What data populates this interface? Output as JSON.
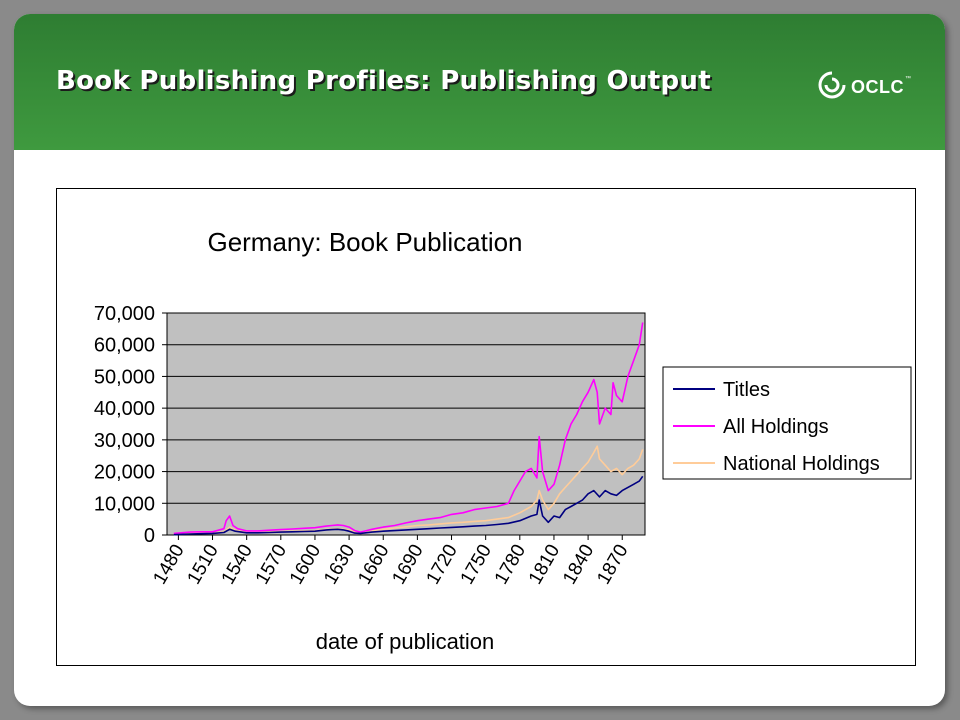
{
  "header": {
    "title": "Book Publishing Profiles: Publishing Output",
    "logo_text": "OCLC",
    "logo_tm": "™",
    "logo_icon": "oclc-swirl-icon",
    "colors": {
      "band": "#3a8f3a",
      "title": "#ffffff"
    }
  },
  "chart_data": {
    "type": "line",
    "title": "Germany: Book Publication",
    "xlabel": "date of publication",
    "ylabel": "",
    "xlim": [
      1470,
      1890
    ],
    "ylim": [
      0,
      70000
    ],
    "x_ticks": [
      1480,
      1510,
      1540,
      1570,
      1600,
      1630,
      1660,
      1690,
      1720,
      1750,
      1780,
      1810,
      1840,
      1870
    ],
    "y_ticks": [
      0,
      10000,
      20000,
      30000,
      40000,
      50000,
      60000,
      70000
    ],
    "y_tick_labels": [
      "0",
      "10,000",
      "20,000",
      "30,000",
      "40,000",
      "50,000",
      "60,000",
      "70,000"
    ],
    "grid": true,
    "plot_background": "#c0c0c0",
    "legend_position": "right",
    "series": [
      {
        "name": "Titles",
        "color": "#000080",
        "x": [
          1476,
          1490,
          1500,
          1510,
          1520,
          1525,
          1530,
          1540,
          1550,
          1560,
          1570,
          1580,
          1590,
          1600,
          1610,
          1615,
          1620,
          1625,
          1630,
          1635,
          1640,
          1650,
          1660,
          1670,
          1680,
          1690,
          1700,
          1710,
          1720,
          1730,
          1740,
          1750,
          1760,
          1770,
          1780,
          1790,
          1795,
          1797,
          1800,
          1805,
          1810,
          1815,
          1820,
          1825,
          1830,
          1835,
          1840,
          1845,
          1850,
          1855,
          1860,
          1865,
          1870,
          1875,
          1880,
          1885,
          1888
        ],
        "y": [
          100,
          300,
          400,
          500,
          800,
          1800,
          1200,
          700,
          700,
          800,
          900,
          1000,
          1100,
          1200,
          1600,
          1700,
          1800,
          1600,
          1200,
          600,
          500,
          900,
          1200,
          1400,
          1600,
          1800,
          2000,
          2200,
          2400,
          2600,
          2800,
          3000,
          3300,
          3700,
          4500,
          6000,
          6500,
          11000,
          6000,
          4000,
          6000,
          5500,
          8000,
          9000,
          10000,
          11000,
          13000,
          14000,
          12000,
          14000,
          13000,
          12500,
          14000,
          15000,
          16000,
          17000,
          18500
        ]
      },
      {
        "name": "All Holdings",
        "color": "#ff00ff",
        "x": [
          1476,
          1490,
          1500,
          1510,
          1520,
          1522,
          1525,
          1528,
          1532,
          1540,
          1550,
          1560,
          1570,
          1580,
          1590,
          1600,
          1610,
          1615,
          1620,
          1625,
          1630,
          1635,
          1640,
          1650,
          1660,
          1670,
          1680,
          1690,
          1700,
          1710,
          1720,
          1730,
          1740,
          1750,
          1760,
          1770,
          1775,
          1780,
          1785,
          1790,
          1795,
          1797,
          1800,
          1805,
          1810,
          1815,
          1820,
          1825,
          1830,
          1835,
          1840,
          1845,
          1848,
          1850,
          1855,
          1860,
          1862,
          1865,
          1870,
          1875,
          1880,
          1885,
          1888
        ],
        "y": [
          500,
          900,
          1000,
          1000,
          2000,
          4500,
          6000,
          3000,
          2000,
          1300,
          1300,
          1500,
          1700,
          1900,
          2100,
          2300,
          2800,
          3000,
          3200,
          3000,
          2500,
          1400,
          900,
          1800,
          2500,
          3000,
          3800,
          4500,
          5000,
          5500,
          6500,
          7000,
          8000,
          8500,
          9000,
          10000,
          14000,
          17000,
          20000,
          21000,
          18000,
          31000,
          20000,
          14000,
          16000,
          22000,
          30000,
          35000,
          38000,
          42000,
          45000,
          49000,
          45000,
          35000,
          40000,
          38000,
          48000,
          44000,
          42000,
          50000,
          55000,
          60000,
          67000
        ]
      },
      {
        "name": "National Holdings",
        "color": "#ffcc99",
        "x": [
          1476,
          1490,
          1500,
          1510,
          1520,
          1525,
          1530,
          1540,
          1550,
          1560,
          1570,
          1580,
          1590,
          1600,
          1610,
          1620,
          1630,
          1635,
          1640,
          1650,
          1660,
          1670,
          1680,
          1690,
          1700,
          1710,
          1720,
          1730,
          1740,
          1750,
          1760,
          1770,
          1780,
          1790,
          1795,
          1797,
          1800,
          1805,
          1810,
          1815,
          1820,
          1825,
          1830,
          1835,
          1840,
          1845,
          1848,
          1850,
          1855,
          1860,
          1865,
          1870,
          1875,
          1880,
          1885,
          1888
        ],
        "y": [
          300,
          500,
          600,
          600,
          1000,
          2500,
          1500,
          900,
          900,
          1000,
          1100,
          1200,
          1300,
          1400,
          1800,
          2000,
          1600,
          1000,
          700,
          1300,
          1800,
          2200,
          2600,
          3000,
          3200,
          3500,
          3800,
          4000,
          4300,
          4500,
          5000,
          5500,
          7000,
          9000,
          11000,
          14000,
          11000,
          8000,
          10000,
          13000,
          15000,
          17000,
          19000,
          21000,
          23000,
          26000,
          28000,
          24000,
          22000,
          20000,
          21000,
          19000,
          21000,
          22000,
          24000,
          27000
        ]
      }
    ]
  }
}
